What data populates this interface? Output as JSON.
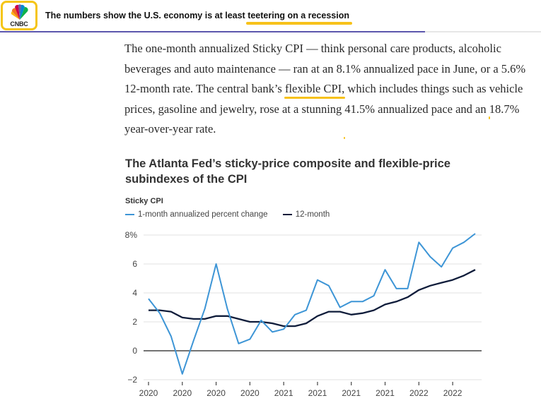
{
  "header": {
    "logo_text": "CNBC",
    "headline_prefix": "The numbers show the U.S. economy is at least ",
    "headline_highlight": "teetering on a recession",
    "read_progress": 0.785,
    "colors": {
      "progress": "#5b56ad",
      "highlight": "#f7c21a",
      "logo_border": "#f5c518"
    }
  },
  "article": {
    "segments": [
      {
        "text": "The one-month annualized Sticky CPI — think personal care products, alcoholic beverages and auto maintenance — ran at an 8.1% annualized pace in June, or a 5.6% 12-month rate. The central bank’s ",
        "highlight": false
      },
      {
        "text": "flexible CPI,",
        "highlight": true
      },
      {
        "text": " which includes things such as ",
        "highlight": false
      },
      {
        "text": "vehicle prices, gasoline and jewelry, rose at a stunning",
        "highlight": true
      },
      {
        "text": " ",
        "highlight": false
      },
      {
        "text": "41.5% annualized pace and an 18.7% year-over-year rate.",
        "highlight": true
      }
    ]
  },
  "chart_data": {
    "type": "line",
    "title": "The Atlanta Fed’s sticky-price composite and flexible-price subindexes of the CPI",
    "subtitle": "Sticky CPI",
    "xlabel": "",
    "ylabel": "",
    "ylim": [
      -2,
      8
    ],
    "yticks": [
      -2,
      0,
      2,
      4,
      6,
      8
    ],
    "ytick_labels": [
      "−2",
      "0",
      "2",
      "4",
      "6",
      "8%"
    ],
    "grid": true,
    "legend_position": "top-left",
    "x_count": 30,
    "xtick_indices": [
      0,
      3,
      6,
      9,
      12,
      15,
      18,
      21,
      24,
      27
    ],
    "xtick_labels": [
      "2020",
      "2020",
      "2020",
      "2020",
      "2021",
      "2021",
      "2021",
      "2021",
      "2022",
      "2022"
    ],
    "series": [
      {
        "name": "1-month annualized percent change",
        "color": "#3d95d6",
        "values": [
          3.6,
          2.6,
          1.0,
          -1.6,
          0.7,
          2.9,
          6.0,
          2.9,
          0.5,
          0.8,
          2.1,
          1.3,
          1.5,
          2.5,
          2.8,
          4.9,
          4.5,
          3.0,
          3.4,
          3.4,
          3.8,
          5.6,
          4.3,
          4.3,
          7.5,
          6.5,
          5.8,
          7.1,
          7.5,
          8.1
        ]
      },
      {
        "name": "12-month",
        "color": "#0f1c3a",
        "values": [
          2.8,
          2.8,
          2.7,
          2.3,
          2.2,
          2.2,
          2.4,
          2.4,
          2.2,
          2.0,
          2.0,
          1.9,
          1.7,
          1.7,
          1.9,
          2.4,
          2.7,
          2.7,
          2.5,
          2.6,
          2.8,
          3.2,
          3.4,
          3.7,
          4.2,
          4.5,
          4.7,
          4.9,
          5.2,
          5.6
        ]
      }
    ]
  }
}
